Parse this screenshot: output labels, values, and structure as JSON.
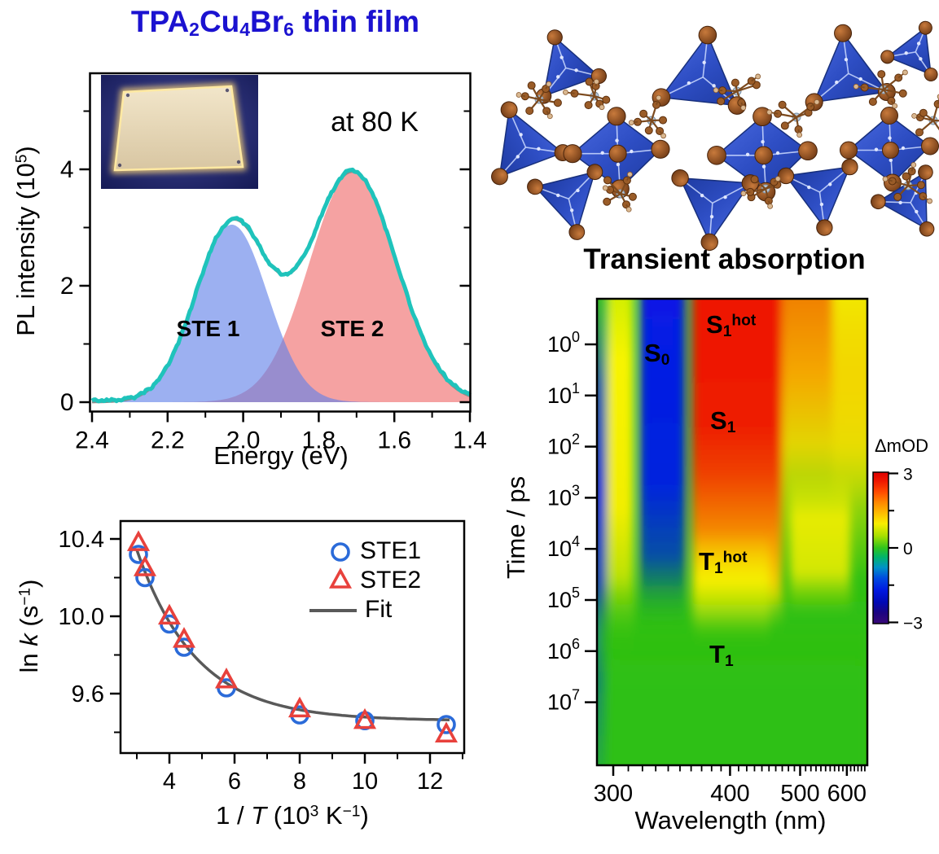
{
  "title": {
    "p1": "TPA",
    "s1": "2",
    "p2": "Cu",
    "s2": "4",
    "p3": "Br",
    "s3": "6",
    "p4": " thin film",
    "color": "#1b12d0"
  },
  "colors": {
    "measured_curve": "#1fc3bb",
    "fit_sum": "#8a8a8a",
    "ste1_fill": "#5f7fe8",
    "ste2_fill": "#f5a2a2",
    "ste1_marker": "#2b6bd9",
    "ste2_marker": "#e8413c",
    "fit_line": "#595959",
    "heat_base": "#2fc013",
    "heat_negative": "#0522dc",
    "heat_positive": "#ee1500",
    "tetrahedron": "#2e4ec4",
    "atom_brown": "#9a5c28",
    "atom_tan": "#d9b891",
    "atom_gray": "#b9c9da",
    "inset_background": "#1a2058",
    "inset_plate": "#ecdfc0",
    "inset_glow": "#ffd978"
  },
  "chart_data": [
    {
      "id": "pl_spectrum",
      "type": "area",
      "annotation": "at 80 K",
      "xlabel": "Energy (eV)",
      "ylabel": "PL intensity (10^5)",
      "ylabel_parts": {
        "p1": "PL intensity (10",
        "sup": "5",
        "p2": ")"
      },
      "xlim": [
        2.4,
        1.4
      ],
      "ylim": [
        0,
        5.55
      ],
      "xticks": [
        2.4,
        2.2,
        2.0,
        1.8,
        1.6,
        1.4
      ],
      "yticks": [
        0,
        2,
        4
      ],
      "series": [
        {
          "name": "STE 1",
          "model": "gaussian",
          "center_eV": 2.03,
          "sigma_eV": 0.095,
          "amplitude_1e5": 3.05
        },
        {
          "name": "STE 2",
          "model": "gaussian",
          "center_eV": 1.71,
          "sigma_eV": 0.115,
          "amplitude_1e5": 3.95
        },
        {
          "name": "measured",
          "model": "sum_of_peaks_plus_noise",
          "noise": 0.035,
          "offset": 0.02
        },
        {
          "name": "fit sum",
          "model": "sum_of_peaks"
        }
      ],
      "key_points": {
        "peak1": [
          2.03,
          3.1
        ],
        "valley": [
          1.88,
          2.15
        ],
        "peak2": [
          1.71,
          4.0
        ]
      },
      "inset": {
        "type": "photo",
        "description": "glowing thin-film sample plate on dark background"
      }
    },
    {
      "id": "arrhenius",
      "type": "scatter",
      "xlabel": "1 / T (10^3 K^-1)",
      "xlabel_parts": {
        "p1": "1 / ",
        "it": "T",
        "p2": " (10",
        "sup1": "3",
        "p3": " K",
        "sup2": "−1",
        "p4": ")"
      },
      "ylabel": "ln k (s^-1)",
      "ylabel_parts": {
        "p1": "ln ",
        "it": "k",
        "p2": " (s",
        "sup": "−1",
        "p3": ")"
      },
      "xlim": [
        2.5,
        13.05
      ],
      "ylim": [
        9.29,
        10.49
      ],
      "xticks": [
        4,
        6,
        8,
        10,
        12
      ],
      "yticks": [
        10.4,
        10.0,
        9.6
      ],
      "x": [
        3.05,
        3.25,
        4.0,
        4.45,
        5.75,
        8.0,
        10.0,
        12.5
      ],
      "series": [
        {
          "name": "STE1",
          "marker": "circle",
          "color": "#2b6bd9",
          "values": [
            10.32,
            10.2,
            9.96,
            9.84,
            9.63,
            9.49,
            9.46,
            9.44
          ]
        },
        {
          "name": "STE2",
          "marker": "triangle",
          "color": "#e8413c",
          "values": [
            10.37,
            10.24,
            9.99,
            9.87,
            9.66,
            9.51,
            9.45,
            9.38
          ]
        },
        {
          "name": "Fit",
          "marker": "line",
          "color": "#595959",
          "fit_model": "y = 9.46 + 4.6*exp(-0.55*x)",
          "baseline": 9.46,
          "amplitude": 4.6,
          "rate": 0.55
        }
      ]
    },
    {
      "id": "transient_absorption",
      "type": "heatmap",
      "title": "Transient absorption",
      "xlabel": "Wavelength (nm)",
      "ylabel": "Time / ps",
      "x_ticks": [
        300,
        400,
        500,
        600
      ],
      "x_minor_step_nm": 10,
      "x_range_nm": [
        290,
        658
      ],
      "x_scale": "linear in photon energy",
      "y_scale": "log10",
      "y_tick_exps": [
        0,
        1,
        2,
        3,
        4,
        5,
        6,
        7
      ],
      "colorbar": {
        "label": "ΔmOD",
        "ticks": [
          3,
          0,
          -3
        ],
        "tick_labels": [
          "3",
          "0",
          "−3"
        ],
        "range": [
          -3,
          3
        ],
        "minor_ticks": [
          1.5,
          -1.5
        ]
      },
      "state_labels": {
        "s0": {
          "m": "S",
          "sub": "0"
        },
        "s1hot": {
          "m": "S",
          "sub": "1",
          "sup": "hot"
        },
        "s1": {
          "m": "S",
          "sub": "1"
        },
        "t1hot": {
          "m": "T",
          "sub": "1",
          "sup": "hot"
        },
        "t1": {
          "m": "T",
          "sub": "1"
        }
      },
      "features": [
        {
          "label": "S0",
          "kind": "ground-state bleach",
          "signal_mOD": -3,
          "wavelength_nm": [
            330,
            362
          ],
          "time_ps": [
            0.15,
            30000
          ]
        },
        {
          "label": "S1 hot",
          "kind": "excited-state absorption",
          "signal_mOD": 3,
          "wavelength_nm": [
            368,
            470
          ],
          "time_ps": [
            0.15,
            3
          ]
        },
        {
          "label": "S1",
          "kind": "excited-state absorption",
          "signal_mOD": 3,
          "wavelength_nm": [
            368,
            470
          ],
          "time_ps": [
            3,
            300
          ]
        },
        {
          "label": "T1 hot",
          "kind": "excited-state absorption",
          "signal_mOD": 1.5,
          "wavelength_nm": [
            370,
            450
          ],
          "time_ps": [
            1000,
            30000
          ]
        },
        {
          "label": "T1",
          "kind": "excited-state absorption",
          "signal_mOD": 0.8,
          "wavelength_nm": [
            375,
            440
          ],
          "time_ps": [
            30000,
            200000
          ]
        }
      ]
    }
  ]
}
